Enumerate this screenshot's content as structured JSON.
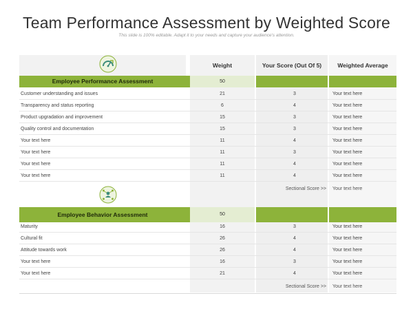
{
  "slide": {
    "title": "Team Performance Assessment by Weighted Score",
    "subtitle": "This slide is 100% editable. Adapt it to your needs and capture your audience's attention."
  },
  "columns": {
    "weight": "Weight",
    "score": "Your Score (Out Of 5)",
    "average": "Weighted Average"
  },
  "colors": {
    "accent_green": "#8db33a",
    "light_green": "#e4edd2",
    "column_gray": "#f2f2f2"
  },
  "section1": {
    "icon": "speedometer-growth-icon",
    "title": "Employee Performance Assessment",
    "weight": "50",
    "rows": [
      {
        "label": "Customer understanding and issues",
        "weight": "21",
        "score": "3",
        "avg": "Your text here"
      },
      {
        "label": "Transparency and status reporting",
        "weight": "6",
        "score": "4",
        "avg": "Your text here"
      },
      {
        "label": "Product upgradation and improvement",
        "weight": "15",
        "score": "3",
        "avg": "Your text here"
      },
      {
        "label": "Quality control and documentation",
        "weight": "15",
        "score": "3",
        "avg": "Your text here"
      },
      {
        "label": "Your text here",
        "weight": "11",
        "score": "4",
        "avg": "Your text here"
      },
      {
        "label": "Your text here",
        "weight": "11",
        "score": "3",
        "avg": "Your text here"
      },
      {
        "label": "Your text here",
        "weight": "11",
        "score": "4",
        "avg": "Your text here"
      },
      {
        "label": "Your text here",
        "weight": "11",
        "score": "4",
        "avg": "Your text here"
      }
    ],
    "sectional_label": "Sectional Score >>",
    "sectional_value": "Your text here"
  },
  "section2": {
    "icon": "team-network-icon",
    "title": "Employee Behavior Assessment",
    "weight": "50",
    "rows": [
      {
        "label": "Maturity",
        "weight": "16",
        "score": "3",
        "avg": "Your text here"
      },
      {
        "label": "Cultural fit",
        "weight": "26",
        "score": "4",
        "avg": "Your text here"
      },
      {
        "label": "Attitude towards work",
        "weight": "26",
        "score": "4",
        "avg": "Your text here"
      },
      {
        "label": "Your text here",
        "weight": "16",
        "score": "3",
        "avg": "Your text here"
      },
      {
        "label": "Your text here",
        "weight": "21",
        "score": "4",
        "avg": "Your text here"
      }
    ],
    "sectional_label": "Sectional Score >>",
    "sectional_value": "Your text here"
  }
}
